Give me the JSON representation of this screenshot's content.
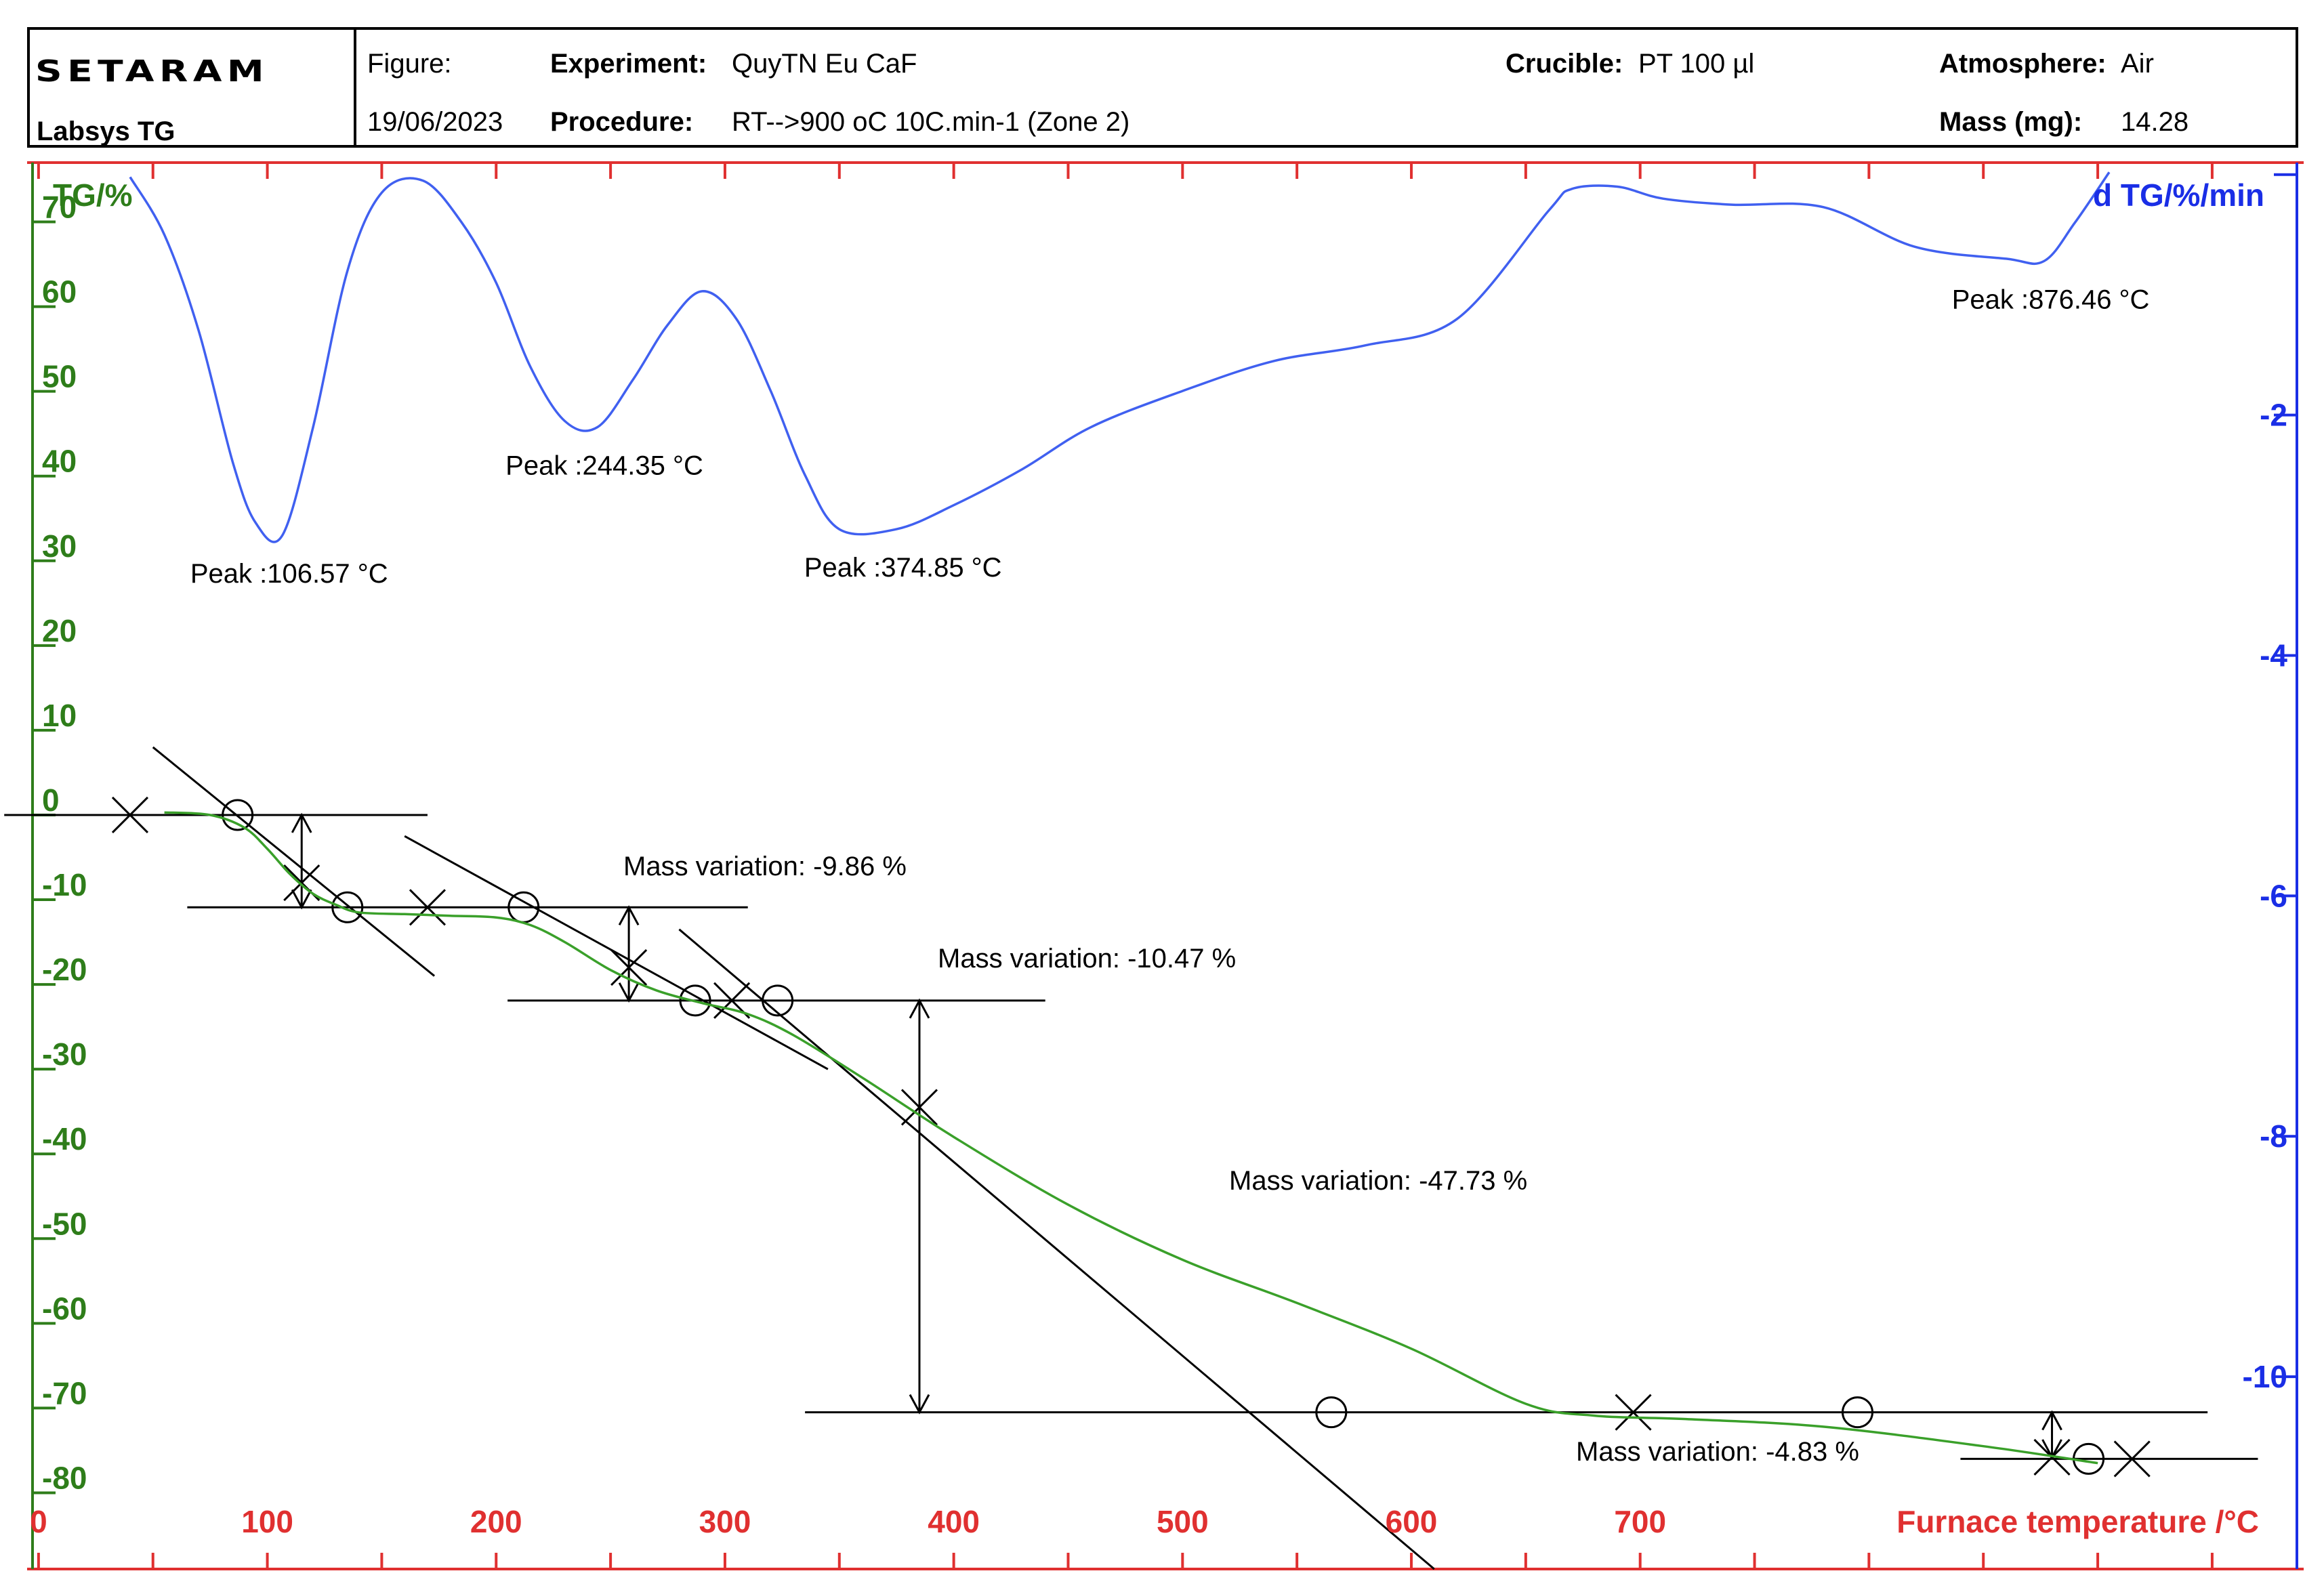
{
  "header": {
    "brand": "SETARAM",
    "instrument": "Labsys TG",
    "figure_label": "Figure:",
    "date": "19/06/2023",
    "experiment_label": "Experiment:",
    "experiment_value": "QuyTN Eu CaF",
    "procedure_label": "Procedure:",
    "procedure_value": "RT-->900 oC 10C.min-1 (Zone 2)",
    "crucible_label": "Crucible:",
    "crucible_value": "PT 100 µl",
    "atmosphere_label": "Atmosphere:",
    "atmosphere_value": "Air",
    "mass_label": "Mass (mg):",
    "mass_value": "14.28"
  },
  "colors": {
    "frame": "#e03030",
    "tg_axis": "#2e7d1a",
    "dtg_axis": "#1a2ee6",
    "tg_curve": "#3aa02a",
    "dtg_curve": "#4060f0",
    "construction": "#000000"
  },
  "chart_data": {
    "type": "line",
    "xlabel": "Furnace temperature /°C",
    "xlim": [
      -5,
      990
    ],
    "x_ticks": [
      0,
      100,
      200,
      300,
      400,
      500,
      600,
      700
    ],
    "y_left_label": "TG/%",
    "y_left_lim": [
      -89,
      77
    ],
    "y_left_ticks": [
      70,
      60,
      50,
      40,
      30,
      20,
      10,
      0,
      -10,
      -20,
      -30,
      -40,
      -50,
      -60,
      -70,
      -80
    ],
    "y_right_label": "d TG/%/min",
    "y_right_lim": [
      -11.6,
      0.1
    ],
    "y_right_ticks": [
      -2,
      -4,
      -6,
      -8,
      -10
    ],
    "series": [
      {
        "name": "TG",
        "axis": "left",
        "x": [
          55,
          75,
          90,
          100,
          110,
          120,
          130,
          140,
          160,
          180,
          200,
          215,
          230,
          250,
          270,
          290,
          310,
          330,
          360,
          400,
          450,
          500,
          550,
          600,
          650,
          680,
          720,
          780,
          850,
          900
        ],
        "y": [
          0.3,
          0,
          -1.5,
          -4,
          -7,
          -9.3,
          -10.6,
          -11.5,
          -11.7,
          -11.9,
          -12.1,
          -13,
          -15,
          -18.3,
          -20.7,
          -22.2,
          -23.5,
          -26,
          -31,
          -38,
          -46,
          -52.5,
          -57.6,
          -63,
          -69.5,
          -70.9,
          -71.3,
          -72.2,
          -74.5,
          -76.5
        ]
      },
      {
        "name": "dTG",
        "axis": "right",
        "x": [
          40,
          55,
          70,
          85,
          95,
          106.57,
          120,
          135,
          150,
          168,
          185,
          200,
          215,
          230,
          244.35,
          260,
          275,
          290,
          305,
          320,
          335,
          350,
          374.85,
          400,
          430,
          460,
          500,
          540,
          580,
          620,
          660,
          670,
          690,
          710,
          740,
          780,
          820,
          860,
          876.46,
          890,
          905
        ],
        "y": [
          -0.02,
          -0.5,
          -1.3,
          -2.4,
          -2.9,
          -3.0,
          -2.1,
          -0.8,
          -0.15,
          -0.05,
          -0.4,
          -0.9,
          -1.6,
          -2.05,
          -2.1,
          -1.7,
          -1.25,
          -0.97,
          -1.2,
          -1.8,
          -2.5,
          -2.95,
          -2.95,
          -2.75,
          -2.45,
          -2.1,
          -1.8,
          -1.55,
          -1.42,
          -1.2,
          -0.3,
          -0.12,
          -0.1,
          -0.2,
          -0.25,
          -0.27,
          -0.6,
          -0.7,
          -0.72,
          -0.4,
          0.02
        ]
      }
    ],
    "peak_annotations": [
      {
        "text": "Peak :106.57 °C",
        "x": 106.57
      },
      {
        "text": "Peak :244.35 °C",
        "x": 244.35
      },
      {
        "text": "Peak :374.85 °C",
        "x": 374.85
      },
      {
        "text": "Peak :876.46 °C",
        "x": 876.46
      }
    ],
    "mass_variations": [
      {
        "text": "Mass variation: -9.86 %",
        "from_temp": 75,
        "to_temp": 145,
        "from": 0,
        "to": -10.9
      },
      {
        "text": "Mass variation: -10.47 %",
        "from_temp": 210,
        "to_temp": 325,
        "from": -10.9,
        "to": -21.9
      },
      {
        "text": "Mass variation: -47.73 %",
        "from_temp": 325,
        "to_temp": 565,
        "from": -21.9,
        "to": -70.5
      },
      {
        "text": "Mass variation: -4.83 %",
        "from_temp": 795,
        "to_temp": 900,
        "from": -70.5,
        "to": -75.8
      }
    ]
  }
}
